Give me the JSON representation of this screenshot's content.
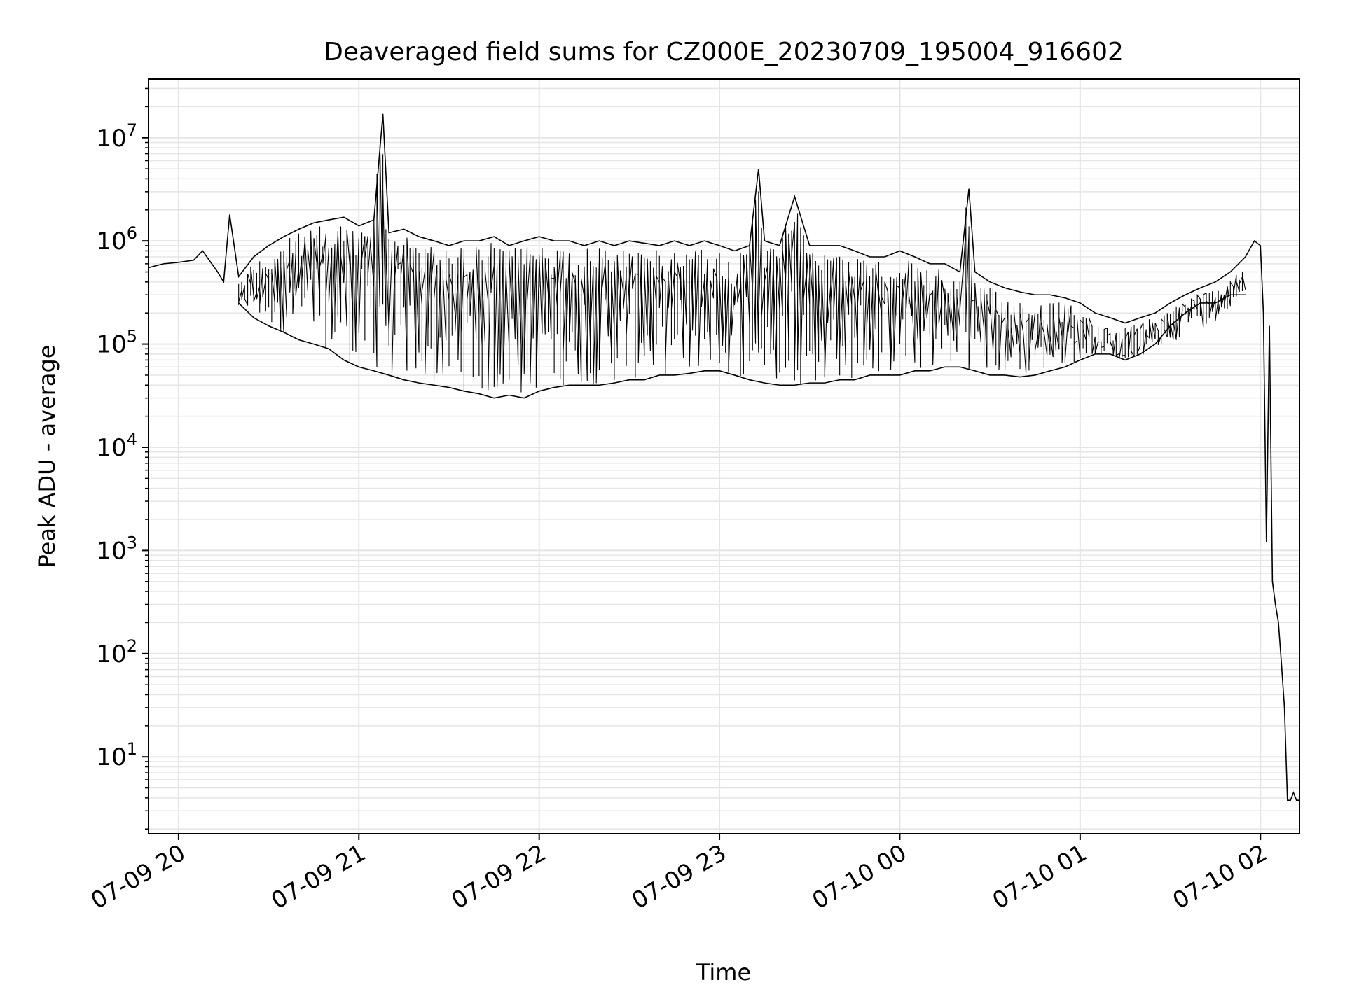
{
  "chart_data": {
    "type": "line",
    "title": "Deaveraged field sums for CZ000E_20230709_195004_916602",
    "xlabel": "Time",
    "ylabel": "Peak ADU - average",
    "yscale": "log",
    "ylim": [
      1.8,
      37000000
    ],
    "xlim": [
      "2023-07-09 19:50",
      "2023-07-10 02:13"
    ],
    "xticks": [
      {
        "value": "2023-07-09 20:00",
        "label": "07-09 20"
      },
      {
        "value": "2023-07-09 21:00",
        "label": "07-09 21"
      },
      {
        "value": "2023-07-09 22:00",
        "label": "07-09 22"
      },
      {
        "value": "2023-07-09 23:00",
        "label": "07-09 23"
      },
      {
        "value": "2023-07-10 00:00",
        "label": "07-10 00"
      },
      {
        "value": "2023-07-10 01:00",
        "label": "07-10 01"
      },
      {
        "value": "2023-07-10 02:00",
        "label": "07-10 02"
      }
    ],
    "yticks": [
      {
        "exp": 1,
        "label_base": "10",
        "label_exp": "1"
      },
      {
        "exp": 2,
        "label_base": "10",
        "label_exp": "2"
      },
      {
        "exp": 3,
        "label_base": "10",
        "label_exp": "3"
      },
      {
        "exp": 4,
        "label_base": "10",
        "label_exp": "4"
      },
      {
        "exp": 5,
        "label_base": "10",
        "label_exp": "5"
      },
      {
        "exp": 6,
        "label_base": "10",
        "label_exp": "6"
      },
      {
        "exp": 7,
        "label_base": "10",
        "label_exp": "7"
      }
    ],
    "grid": true,
    "minor_grid": true,
    "line_color": "#000000",
    "grid_color": "#e5e5e5",
    "series": [
      {
        "x": [
          "2023-07-09 19:50",
          "2023-07-09 19:55",
          "2023-07-09 20:00",
          "2023-07-09 20:05",
          "2023-07-09 20:08",
          "2023-07-09 20:13",
          "2023-07-09 20:15",
          "2023-07-09 20:17",
          "2023-07-09 20:20",
          "2023-07-09 20:25",
          "2023-07-09 20:30",
          "2023-07-09 20:35",
          "2023-07-09 20:40",
          "2023-07-09 20:45",
          "2023-07-09 20:50",
          "2023-07-09 20:55",
          "2023-07-09 21:00",
          "2023-07-09 21:05",
          "2023-07-09 21:08",
          "2023-07-09 21:10",
          "2023-07-09 21:15",
          "2023-07-09 21:20",
          "2023-07-09 21:25",
          "2023-07-09 21:30",
          "2023-07-09 21:35",
          "2023-07-09 21:40",
          "2023-07-09 21:45",
          "2023-07-09 21:50",
          "2023-07-09 21:55",
          "2023-07-09 22:00",
          "2023-07-09 22:05",
          "2023-07-09 22:10",
          "2023-07-09 22:15",
          "2023-07-09 22:20",
          "2023-07-09 22:25",
          "2023-07-09 22:30",
          "2023-07-09 22:35",
          "2023-07-09 22:40",
          "2023-07-09 22:45",
          "2023-07-09 22:50",
          "2023-07-09 22:55",
          "2023-07-09 23:00",
          "2023-07-09 23:05",
          "2023-07-09 23:10",
          "2023-07-09 23:13",
          "2023-07-09 23:15",
          "2023-07-09 23:20",
          "2023-07-09 23:25",
          "2023-07-09 23:30",
          "2023-07-09 23:35",
          "2023-07-09 23:40",
          "2023-07-09 23:45",
          "2023-07-09 23:50",
          "2023-07-09 23:55",
          "2023-07-10 00:00",
          "2023-07-10 00:05",
          "2023-07-10 00:10",
          "2023-07-10 00:15",
          "2023-07-10 00:20",
          "2023-07-10 00:23",
          "2023-07-10 00:25",
          "2023-07-10 00:30",
          "2023-07-10 00:35",
          "2023-07-10 00:40",
          "2023-07-10 00:45",
          "2023-07-10 00:50",
          "2023-07-10 00:55",
          "2023-07-10 01:00",
          "2023-07-10 01:05",
          "2023-07-10 01:10",
          "2023-07-10 01:15",
          "2023-07-10 01:20",
          "2023-07-10 01:25",
          "2023-07-10 01:30",
          "2023-07-10 01:35",
          "2023-07-10 01:40",
          "2023-07-10 01:45",
          "2023-07-10 01:50",
          "2023-07-10 01:55",
          "2023-07-10 01:58",
          "2023-07-10 02:00",
          "2023-07-10 02:01",
          "2023-07-10 02:02",
          "2023-07-10 02:03",
          "2023-07-10 02:04",
          "2023-07-10 02:05",
          "2023-07-10 02:06",
          "2023-07-10 02:07",
          "2023-07-10 02:08",
          "2023-07-10 02:09",
          "2023-07-10 02:10",
          "2023-07-10 02:11",
          "2023-07-10 02:12",
          "2023-07-10 02:13"
        ],
        "y": [
          550000,
          600000,
          620000,
          650000,
          800000,
          500000,
          400000,
          1800000,
          450000,
          700000,
          900000,
          1100000,
          1300000,
          1500000,
          1600000,
          1700000,
          1400000,
          1600000,
          17000000,
          1200000,
          1300000,
          1100000,
          1000000,
          900000,
          1000000,
          1000000,
          1100000,
          900000,
          1000000,
          1100000,
          1000000,
          1000000,
          900000,
          1000000,
          900000,
          1000000,
          950000,
          900000,
          1000000,
          900000,
          1000000,
          900000,
          800000,
          900000,
          5000000,
          1000000,
          900000,
          2700000,
          900000,
          900000,
          900000,
          800000,
          700000,
          700000,
          800000,
          700000,
          600000,
          600000,
          500000,
          3200000,
          500000,
          400000,
          350000,
          320000,
          300000,
          300000,
          280000,
          250000,
          200000,
          180000,
          160000,
          180000,
          200000,
          250000,
          300000,
          350000,
          400000,
          500000,
          700000,
          1000000,
          900000,
          200000,
          1200,
          150000,
          500,
          300,
          200,
          80,
          30,
          3.8,
          3.8,
          4.5,
          3.8,
          3.8
        ]
      },
      {
        "x": [
          "2023-07-09 20:20",
          "2023-07-09 20:25",
          "2023-07-09 20:30",
          "2023-07-09 20:35",
          "2023-07-09 20:40",
          "2023-07-09 20:45",
          "2023-07-09 20:50",
          "2023-07-09 20:55",
          "2023-07-09 21:00",
          "2023-07-09 21:05",
          "2023-07-09 21:10",
          "2023-07-09 21:15",
          "2023-07-09 21:20",
          "2023-07-09 21:25",
          "2023-07-09 21:30",
          "2023-07-09 21:35",
          "2023-07-09 21:40",
          "2023-07-09 21:45",
          "2023-07-09 21:50",
          "2023-07-09 21:55",
          "2023-07-09 22:00",
          "2023-07-09 22:05",
          "2023-07-09 22:10",
          "2023-07-09 22:15",
          "2023-07-09 22:20",
          "2023-07-09 22:25",
          "2023-07-09 22:30",
          "2023-07-09 22:35",
          "2023-07-09 22:40",
          "2023-07-09 22:45",
          "2023-07-09 22:50",
          "2023-07-09 22:55",
          "2023-07-09 23:00",
          "2023-07-09 23:05",
          "2023-07-09 23:10",
          "2023-07-09 23:15",
          "2023-07-09 23:20",
          "2023-07-09 23:25",
          "2023-07-09 23:30",
          "2023-07-09 23:35",
          "2023-07-09 23:40",
          "2023-07-09 23:45",
          "2023-07-09 23:50",
          "2023-07-09 23:55",
          "2023-07-10 00:00",
          "2023-07-10 00:05",
          "2023-07-10 00:10",
          "2023-07-10 00:15",
          "2023-07-10 00:20",
          "2023-07-10 00:25",
          "2023-07-10 00:30",
          "2023-07-10 00:35",
          "2023-07-10 00:40",
          "2023-07-10 00:45",
          "2023-07-10 00:50",
          "2023-07-10 00:55",
          "2023-07-10 01:00",
          "2023-07-10 01:05",
          "2023-07-10 01:10",
          "2023-07-10 01:15",
          "2023-07-10 01:20",
          "2023-07-10 01:25",
          "2023-07-10 01:30",
          "2023-07-10 01:35",
          "2023-07-10 01:40",
          "2023-07-10 01:45",
          "2023-07-10 01:50",
          "2023-07-10 01:55"
        ],
        "y": [
          250000,
          180000,
          150000,
          130000,
          110000,
          100000,
          90000,
          70000,
          60000,
          55000,
          50000,
          45000,
          42000,
          40000,
          38000,
          35000,
          33000,
          30000,
          32000,
          30000,
          35000,
          38000,
          40000,
          40000,
          40000,
          42000,
          45000,
          45000,
          50000,
          50000,
          52000,
          55000,
          55000,
          50000,
          45000,
          42000,
          40000,
          40000,
          42000,
          42000,
          45000,
          45000,
          50000,
          50000,
          50000,
          55000,
          55000,
          60000,
          60000,
          55000,
          50000,
          50000,
          48000,
          50000,
          55000,
          60000,
          70000,
          80000,
          80000,
          70000,
          80000,
          100000,
          150000,
          200000,
          250000,
          250000,
          300000,
          300000
        ]
      }
    ]
  }
}
